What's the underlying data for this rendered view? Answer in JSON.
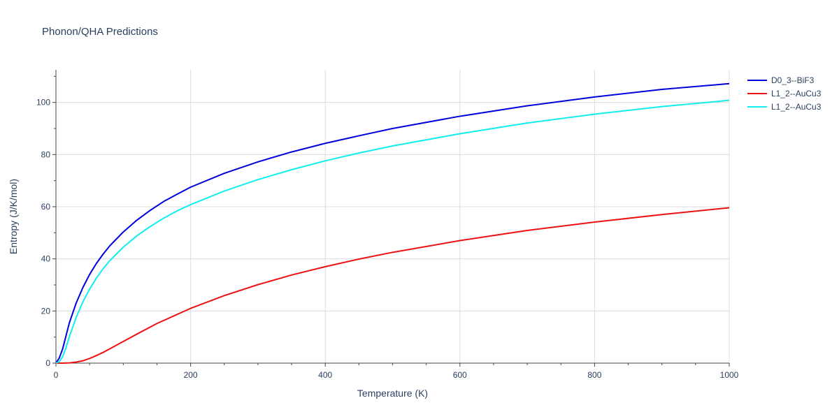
{
  "chart_data": {
    "type": "line",
    "title": "Phonon/QHA Predictions",
    "xlabel": "Temperature (K)",
    "ylabel": "Entropy (J/K/mol)",
    "xlim": [
      0,
      1000
    ],
    "ylim": [
      0,
      112.5
    ],
    "xticks": [
      0,
      200,
      400,
      600,
      800,
      1000
    ],
    "yticks": [
      0,
      20,
      40,
      60,
      80,
      100
    ],
    "grid": true,
    "legend_position": "top-right",
    "series": [
      {
        "name": "D0_3--BiF3",
        "color": "#0000dd",
        "x": [
          0,
          5,
          10,
          15,
          20,
          30,
          40,
          50,
          60,
          70,
          80,
          100,
          120,
          140,
          160,
          180,
          200,
          250,
          300,
          350,
          400,
          450,
          500,
          600,
          700,
          800,
          900,
          1000
        ],
        "y": [
          0,
          2,
          5.5,
          10.5,
          15.5,
          23,
          29,
          34,
          38.2,
          41.8,
          45,
          50.3,
          54.8,
          58.6,
          62,
          64.8,
          67.5,
          72.8,
          77.2,
          81,
          84.3,
          87.2,
          90,
          94.7,
          98.7,
          102.1,
          105,
          107.2
        ]
      },
      {
        "name": "L1_2--AuCu3",
        "color": "#ee1111",
        "x": [
          0,
          10,
          20,
          30,
          40,
          50,
          60,
          70,
          80,
          100,
          120,
          150,
          200,
          250,
          300,
          350,
          400,
          450,
          500,
          600,
          700,
          800,
          900,
          1000
        ],
        "y": [
          0,
          0,
          0.1,
          0.4,
          0.9,
          1.8,
          2.9,
          4.1,
          5.5,
          8.3,
          11.1,
          15.2,
          21,
          25.9,
          30.1,
          33.8,
          37,
          39.9,
          42.5,
          47,
          50.9,
          54.1,
          57,
          59.6
        ]
      },
      {
        "name": "L1_2--AuCu3",
        "color": "#11eeee",
        "x": [
          0,
          5,
          10,
          15,
          20,
          30,
          40,
          50,
          60,
          70,
          80,
          100,
          120,
          140,
          160,
          180,
          200,
          250,
          300,
          350,
          400,
          450,
          500,
          600,
          700,
          800,
          900,
          1000
        ],
        "y": [
          0,
          0.6,
          2.5,
          6,
          10.2,
          17.5,
          23.5,
          28.4,
          32.6,
          36.2,
          39.3,
          44.5,
          48.8,
          52.4,
          55.6,
          58.4,
          60.8,
          66,
          70.4,
          74.2,
          77.6,
          80.6,
          83.3,
          88,
          92.1,
          95.5,
          98.4,
          100.8
        ]
      }
    ]
  }
}
